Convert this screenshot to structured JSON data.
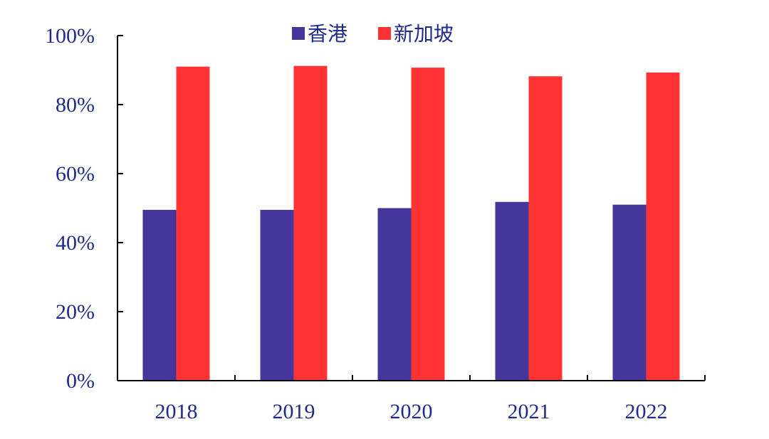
{
  "chart_data": {
    "type": "bar",
    "categories": [
      "2018",
      "2019",
      "2020",
      "2021",
      "2022"
    ],
    "series": [
      {
        "name": "香港",
        "values": [
          49.5,
          49.5,
          50.0,
          51.8,
          51.0
        ],
        "color": "#44369a"
      },
      {
        "name": "新加坡",
        "values": [
          91.0,
          91.2,
          90.7,
          88.2,
          89.3
        ],
        "color": "#ff3334"
      }
    ],
    "y_ticks": [
      "0%",
      "20%",
      "40%",
      "60%",
      "80%",
      "100%"
    ],
    "ylim": [
      0,
      100
    ],
    "title": "",
    "xlabel": "",
    "ylabel": "",
    "legend_position": "top-center",
    "grid": false,
    "axis_color": "#000000",
    "text_color": "#1f2a8c"
  }
}
